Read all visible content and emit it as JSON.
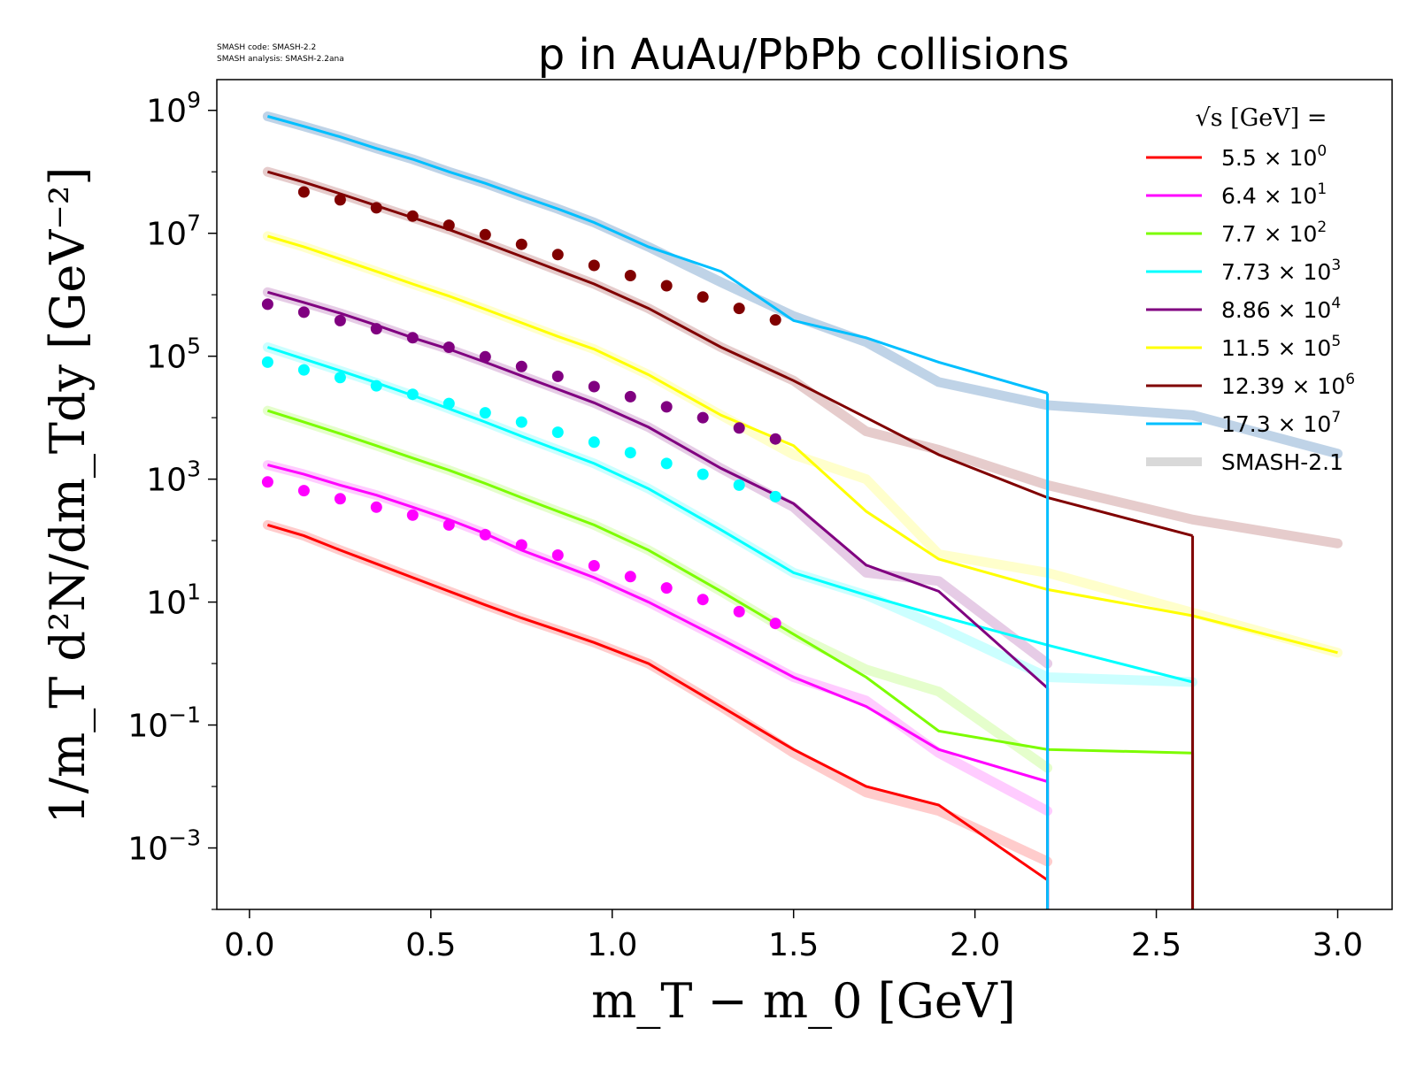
{
  "watermark": {
    "line1": "SMASH code:      SMASH-2.2",
    "line2": "SMASH analysis: SMASH-2.2ana"
  },
  "chart_data": {
    "type": "line",
    "title": "p in AuAu/PbPb collisions",
    "xlabel": "m_T − m_0 [GeV]",
    "ylabel": "1/m_T d²N/dm_Tdy [GeV⁻²]",
    "xlim": [
      -0.09,
      3.15
    ],
    "ylim_log10": [
      -4.0,
      9.5
    ],
    "yscale": "log",
    "grid": false,
    "legend_position": "top-right",
    "legend_title": "√s  [GeV] =",
    "x_ticks": [
      "0.0",
      "0.5",
      "1.0",
      "1.5",
      "2.0",
      "2.5",
      "3.0"
    ],
    "y_ticks": [
      {
        "base": "10",
        "exp": "9"
      },
      {
        "base": "10",
        "exp": "7"
      },
      {
        "base": "10",
        "exp": "5"
      },
      {
        "base": "10",
        "exp": "3"
      },
      {
        "base": "10",
        "exp": "1"
      },
      {
        "base": "10",
        "exp": "−1"
      },
      {
        "base": "10",
        "exp": "−3"
      }
    ],
    "x_bins": [
      0.05,
      0.15,
      0.25,
      0.35,
      0.45,
      0.55,
      0.65,
      0.75,
      0.85,
      0.95,
      1.1,
      1.3,
      1.5,
      1.7,
      1.9,
      2.2,
      2.6,
      3.0
    ],
    "series": [
      {
        "name": "5.5 × 10⁰",
        "label_mant": "5.5 × 10",
        "label_exp": "0",
        "color": "#ff0000",
        "y": [
          180.0,
          120.0,
          70.0,
          42.0,
          25.0,
          15.0,
          9.0,
          5.5,
          3.5,
          2.2,
          1.0,
          0.2,
          0.04,
          0.01,
          0.005,
          0.0003,
          null,
          null
        ],
        "ref": [
          180.0,
          120.0,
          70.0,
          42.0,
          25.0,
          15.0,
          9.0,
          5.5,
          3.5,
          2.2,
          1.0,
          0.2,
          0.035,
          0.008,
          0.004,
          0.0006,
          null,
          null
        ],
        "data_x": [],
        "data_y": []
      },
      {
        "name": "6.4 × 10¹",
        "label_mant": "6.4 × 10",
        "label_exp": "1",
        "color": "#ff00ff",
        "y": [
          1700.0,
          1200.0,
          800.0,
          550.0,
          350.0,
          220.0,
          130.0,
          70.0,
          42.0,
          25.0,
          10.0,
          2.5,
          0.6,
          0.2,
          0.04,
          0.012,
          null,
          null
        ],
        "ref": [
          1700.0,
          1200.0,
          800.0,
          550.0,
          350.0,
          220.0,
          130.0,
          70.0,
          42.0,
          25.0,
          10.0,
          2.5,
          0.6,
          0.25,
          0.035,
          0.004,
          null,
          null
        ],
        "data_x": [
          0.05,
          0.15,
          0.25,
          0.35,
          0.45,
          0.55,
          0.65,
          0.75,
          0.85,
          0.95,
          1.05,
          1.15,
          1.25,
          1.35,
          1.45
        ],
        "data_y": [
          900.0,
          650.0,
          480.0,
          350.0,
          260.0,
          180.0,
          125.0,
          85.0,
          58.0,
          39.0,
          26.0,
          17.0,
          11.0,
          7.0,
          4.5
        ]
      },
      {
        "name": "7.7 × 10²",
        "label_mant": "7.7 × 10",
        "label_exp": "2",
        "color": "#7cfc00",
        "y": [
          13000.0,
          8500.0,
          5500.0,
          3500.0,
          2200.0,
          1400.0,
          850.0,
          500.0,
          300.0,
          180.0,
          70.0,
          15.0,
          3.0,
          0.6,
          0.08,
          0.04,
          0.035,
          null
        ],
        "ref": [
          13000.0,
          8500.0,
          5500.0,
          3500.0,
          2200.0,
          1400.0,
          850.0,
          500.0,
          300.0,
          180.0,
          70.0,
          15.0,
          3.0,
          0.8,
          0.35,
          0.02,
          null,
          null
        ],
        "data_x": [],
        "data_y": []
      },
      {
        "name": "7.73 × 10³",
        "label_mant": "7.73 × 10",
        "label_exp": "3",
        "color": "#00ffff",
        "y": [
          140000.0,
          90000.0,
          58000.0,
          37000.0,
          23000.0,
          14000.0,
          8500.0,
          5000.0,
          3000.0,
          1800.0,
          700.0,
          150.0,
          30.0,
          13.0,
          6.0,
          2.0,
          0.5,
          null
        ],
        "ref": [
          140000.0,
          90000.0,
          58000.0,
          37000.0,
          23000.0,
          14000.0,
          8500.0,
          5000.0,
          3000.0,
          1800.0,
          700.0,
          150.0,
          30.0,
          13.0,
          4.0,
          0.6,
          0.5,
          null
        ],
        "data_x": [
          0.05,
          0.15,
          0.25,
          0.35,
          0.45,
          0.55,
          0.65,
          0.75,
          0.85,
          0.95,
          1.05,
          1.15,
          1.25,
          1.35,
          1.45
        ],
        "data_y": [
          80000.0,
          60000.0,
          45000.0,
          33000.0,
          24000.0,
          17000.0,
          12000.0,
          8500.0,
          5800.0,
          4000.0,
          2700.0,
          1800.0,
          1200.0,
          800.0,
          520.0
        ]
      },
      {
        "name": "8.86 × 10⁴",
        "label_mant": "8.86 × 10",
        "label_exp": "4",
        "color": "#800080",
        "y": [
          1100000.0,
          750000.0,
          500000.0,
          320000.0,
          200000.0,
          130000.0,
          80000.0,
          48000.0,
          29000.0,
          17500.0,
          7000.0,
          1500.0,
          400.0,
          40.0,
          15.0,
          0.4,
          null,
          null
        ],
        "ref": [
          1100000.0,
          750000.0,
          500000.0,
          320000.0,
          200000.0,
          130000.0,
          80000.0,
          48000.0,
          29000.0,
          17500.0,
          7000.0,
          1500.0,
          350.0,
          30.0,
          22.0,
          1.0,
          null,
          null
        ],
        "data_x": [
          0.05,
          0.15,
          0.25,
          0.35,
          0.45,
          0.55,
          0.65,
          0.75,
          0.85,
          0.95,
          1.05,
          1.15,
          1.25,
          1.35,
          1.45
        ],
        "data_y": [
          700000.0,
          520000.0,
          380000.0,
          280000.0,
          200000.0,
          140000.0,
          98000.0,
          68000.0,
          47000.0,
          32000.0,
          22000.0,
          15000.0,
          10000.0,
          6800.0,
          4500.0
        ]
      },
      {
        "name": "11.5 × 10⁵",
        "label_mant": "11.5 × 10",
        "label_exp": "5",
        "color": "#ffff00",
        "y": [
          9000000.0,
          6000000.0,
          3800000.0,
          2400000.0,
          1500000.0,
          950000.0,
          580000.0,
          350000.0,
          210000.0,
          130000.0,
          50000.0,
          11000.0,
          3500.0,
          300.0,
          50.0,
          16.0,
          6.0,
          1.5
        ],
        "ref": [
          9000000.0,
          6000000.0,
          3800000.0,
          2400000.0,
          1500000.0,
          950000.0,
          580000.0,
          350000.0,
          210000.0,
          130000.0,
          50000.0,
          11000.0,
          2500.0,
          1000.0,
          60.0,
          30.0,
          null,
          1.5
        ],
        "data_x": [],
        "data_y": []
      },
      {
        "name": "12.39 × 10⁶",
        "label_mant": "12.39 × 10",
        "label_exp": "6",
        "color": "#800000",
        "y": [
          100000000.0,
          68000000.0,
          44000000.0,
          28000000.0,
          18000000.0,
          11500000.0,
          7000000.0,
          4200000.0,
          2500000.0,
          1500000.0,
          600000.0,
          140000.0,
          40000.0,
          10000.0,
          2500.0,
          500.0,
          120.0,
          null
        ],
        "ref": [
          100000000.0,
          68000000.0,
          44000000.0,
          28000000.0,
          18000000.0,
          11500000.0,
          7000000.0,
          4200000.0,
          2500000.0,
          1500000.0,
          600000.0,
          140000.0,
          40000.0,
          6000.0,
          3000.0,
          800.0,
          220.0,
          90.0
        ],
        "data_x": [
          0.15,
          0.25,
          0.35,
          0.45,
          0.55,
          0.65,
          0.75,
          0.85,
          0.95,
          1.05,
          1.15,
          1.25,
          1.35,
          1.45
        ],
        "data_y": [
          47000000.0,
          35000000.0,
          26000000.0,
          19000000.0,
          13500000.0,
          9500000.0,
          6600000.0,
          4500000.0,
          3000000.0,
          2050000.0,
          1400000.0,
          920000.0,
          600000.0,
          390000.0
        ]
      },
      {
        "name": "17.3 × 10⁷",
        "label_mant": "17.3 × 10",
        "label_exp": "7",
        "color": "#00bfff",
        "y": [
          800000000.0,
          550000000.0,
          370000000.0,
          240000000.0,
          160000000.0,
          100000000.0,
          65000000.0,
          40000000.0,
          25000000.0,
          15000000.0,
          6000000.0,
          2400000.0,
          380000.0,
          200000.0,
          80000.0,
          25000.0,
          null,
          null
        ],
        "ref": [
          800000000.0,
          550000000.0,
          370000000.0,
          240000000.0,
          160000000.0,
          100000000.0,
          65000000.0,
          40000000.0,
          25000000.0,
          15000000.0,
          6000000.0,
          1600000.0,
          450000.0,
          170000.0,
          38000.0,
          16000.0,
          11000.0,
          2600.0
        ],
        "data_x": [],
        "data_y": []
      }
    ],
    "reference_label": "SMASH-2.1",
    "reference_color": "#d9d9d9"
  }
}
